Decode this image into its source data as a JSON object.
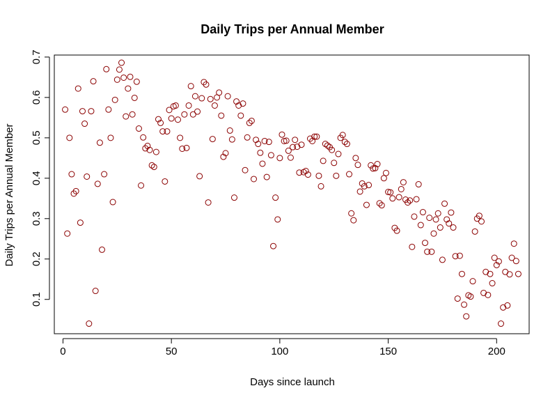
{
  "chart_data": {
    "type": "scatter",
    "title": "Daily Trips per Annual Member",
    "xlabel": "Days since launch",
    "ylabel": "Daily Trips per Annual Member",
    "xlim": [
      -4,
      215
    ],
    "ylim": [
      0.015,
      0.705
    ],
    "x_ticks": [
      0,
      50,
      100,
      150,
      200
    ],
    "y_ticks": [
      0.1,
      0.2,
      0.3,
      0.4,
      0.5,
      0.6,
      0.7
    ],
    "grid": false,
    "legend": "none",
    "marker_color": "#8b0000",
    "points": [
      [
        1,
        0.57
      ],
      [
        2,
        0.263
      ],
      [
        3,
        0.5
      ],
      [
        4,
        0.41
      ],
      [
        5,
        0.362
      ],
      [
        6,
        0.368
      ],
      [
        7,
        0.622
      ],
      [
        8,
        0.29
      ],
      [
        9,
        0.566
      ],
      [
        10,
        0.535
      ],
      [
        11,
        0.404
      ],
      [
        12,
        0.04
      ],
      [
        13,
        0.566
      ],
      [
        14,
        0.64
      ],
      [
        15,
        0.121
      ],
      [
        16,
        0.386
      ],
      [
        17,
        0.488
      ],
      [
        18,
        0.223
      ],
      [
        19,
        0.41
      ],
      [
        20,
        0.67
      ],
      [
        21,
        0.57
      ],
      [
        22,
        0.5
      ],
      [
        23,
        0.341
      ],
      [
        24,
        0.594
      ],
      [
        25,
        0.644
      ],
      [
        26,
        0.669
      ],
      [
        27,
        0.686
      ],
      [
        28,
        0.649
      ],
      [
        29,
        0.553
      ],
      [
        30,
        0.622
      ],
      [
        31,
        0.651
      ],
      [
        32,
        0.558
      ],
      [
        33,
        0.599
      ],
      [
        34,
        0.639
      ],
      [
        35,
        0.523
      ],
      [
        36,
        0.382
      ],
      [
        37,
        0.501
      ],
      [
        38,
        0.474
      ],
      [
        39,
        0.48
      ],
      [
        40,
        0.47
      ],
      [
        41,
        0.432
      ],
      [
        42,
        0.428
      ],
      [
        43,
        0.465
      ],
      [
        44,
        0.546
      ],
      [
        45,
        0.537
      ],
      [
        46,
        0.516
      ],
      [
        47,
        0.392
      ],
      [
        48,
        0.516
      ],
      [
        49,
        0.569
      ],
      [
        50,
        0.548
      ],
      [
        51,
        0.578
      ],
      [
        52,
        0.58
      ],
      [
        53,
        0.545
      ],
      [
        54,
        0.5
      ],
      [
        55,
        0.473
      ],
      [
        56,
        0.558
      ],
      [
        57,
        0.475
      ],
      [
        58,
        0.58
      ],
      [
        59,
        0.628
      ],
      [
        60,
        0.558
      ],
      [
        61,
        0.603
      ],
      [
        62,
        0.565
      ],
      [
        63,
        0.405
      ],
      [
        64,
        0.598
      ],
      [
        65,
        0.638
      ],
      [
        66,
        0.632
      ],
      [
        67,
        0.34
      ],
      [
        68,
        0.596
      ],
      [
        69,
        0.497
      ],
      [
        70,
        0.58
      ],
      [
        71,
        0.6
      ],
      [
        72,
        0.612
      ],
      [
        73,
        0.555
      ],
      [
        74,
        0.453
      ],
      [
        75,
        0.462
      ],
      [
        76,
        0.603
      ],
      [
        77,
        0.518
      ],
      [
        78,
        0.496
      ],
      [
        79,
        0.352
      ],
      [
        80,
        0.59
      ],
      [
        81,
        0.58
      ],
      [
        82,
        0.555
      ],
      [
        83,
        0.585
      ],
      [
        84,
        0.42
      ],
      [
        85,
        0.501
      ],
      [
        86,
        0.537
      ],
      [
        87,
        0.542
      ],
      [
        88,
        0.398
      ],
      [
        89,
        0.495
      ],
      [
        90,
        0.485
      ],
      [
        91,
        0.463
      ],
      [
        92,
        0.436
      ],
      [
        93,
        0.492
      ],
      [
        94,
        0.403
      ],
      [
        95,
        0.49
      ],
      [
        96,
        0.457
      ],
      [
        97,
        0.232
      ],
      [
        98,
        0.352
      ],
      [
        99,
        0.298
      ],
      [
        100,
        0.45
      ],
      [
        101,
        0.508
      ],
      [
        102,
        0.492
      ],
      [
        103,
        0.493
      ],
      [
        104,
        0.468
      ],
      [
        105,
        0.451
      ],
      [
        106,
        0.477
      ],
      [
        107,
        0.495
      ],
      [
        108,
        0.478
      ],
      [
        109,
        0.414
      ],
      [
        110,
        0.483
      ],
      [
        111,
        0.415
      ],
      [
        112,
        0.418
      ],
      [
        113,
        0.409
      ],
      [
        114,
        0.498
      ],
      [
        115,
        0.492
      ],
      [
        116,
        0.503
      ],
      [
        117,
        0.503
      ],
      [
        118,
        0.406
      ],
      [
        119,
        0.38
      ],
      [
        120,
        0.443
      ],
      [
        121,
        0.485
      ],
      [
        122,
        0.481
      ],
      [
        123,
        0.477
      ],
      [
        124,
        0.47
      ],
      [
        125,
        0.438
      ],
      [
        126,
        0.406
      ],
      [
        127,
        0.46
      ],
      [
        128,
        0.5
      ],
      [
        129,
        0.507
      ],
      [
        130,
        0.49
      ],
      [
        131,
        0.485
      ],
      [
        132,
        0.41
      ],
      [
        133,
        0.313
      ],
      [
        134,
        0.296
      ],
      [
        135,
        0.45
      ],
      [
        136,
        0.433
      ],
      [
        137,
        0.367
      ],
      [
        138,
        0.387
      ],
      [
        139,
        0.38
      ],
      [
        140,
        0.334
      ],
      [
        141,
        0.383
      ],
      [
        142,
        0.432
      ],
      [
        143,
        0.424
      ],
      [
        144,
        0.425
      ],
      [
        145,
        0.435
      ],
      [
        146,
        0.338
      ],
      [
        147,
        0.333
      ],
      [
        148,
        0.4
      ],
      [
        149,
        0.413
      ],
      [
        150,
        0.366
      ],
      [
        151,
        0.365
      ],
      [
        152,
        0.35
      ],
      [
        153,
        0.277
      ],
      [
        154,
        0.27
      ],
      [
        155,
        0.353
      ],
      [
        156,
        0.373
      ],
      [
        157,
        0.39
      ],
      [
        158,
        0.347
      ],
      [
        159,
        0.34
      ],
      [
        160,
        0.345
      ],
      [
        161,
        0.23
      ],
      [
        162,
        0.305
      ],
      [
        163,
        0.348
      ],
      [
        164,
        0.385
      ],
      [
        165,
        0.284
      ],
      [
        166,
        0.316
      ],
      [
        167,
        0.24
      ],
      [
        168,
        0.218
      ],
      [
        169,
        0.302
      ],
      [
        170,
        0.218
      ],
      [
        171,
        0.263
      ],
      [
        172,
        0.298
      ],
      [
        173,
        0.313
      ],
      [
        174,
        0.278
      ],
      [
        175,
        0.198
      ],
      [
        176,
        0.337
      ],
      [
        177,
        0.298
      ],
      [
        178,
        0.288
      ],
      [
        179,
        0.315
      ],
      [
        180,
        0.278
      ],
      [
        181,
        0.207
      ],
      [
        182,
        0.102
      ],
      [
        183,
        0.208
      ],
      [
        184,
        0.163
      ],
      [
        185,
        0.087
      ],
      [
        186,
        0.058
      ],
      [
        187,
        0.11
      ],
      [
        188,
        0.107
      ],
      [
        189,
        0.145
      ],
      [
        190,
        0.268
      ],
      [
        191,
        0.3
      ],
      [
        192,
        0.307
      ],
      [
        193,
        0.293
      ],
      [
        194,
        0.116
      ],
      [
        195,
        0.168
      ],
      [
        196,
        0.111
      ],
      [
        197,
        0.163
      ],
      [
        198,
        0.14
      ],
      [
        199,
        0.203
      ],
      [
        200,
        0.185
      ],
      [
        201,
        0.194
      ],
      [
        202,
        0.04
      ],
      [
        203,
        0.08
      ],
      [
        204,
        0.168
      ],
      [
        205,
        0.085
      ],
      [
        206,
        0.162
      ],
      [
        207,
        0.203
      ],
      [
        208,
        0.238
      ],
      [
        209,
        0.195
      ],
      [
        210,
        0.163
      ]
    ]
  }
}
